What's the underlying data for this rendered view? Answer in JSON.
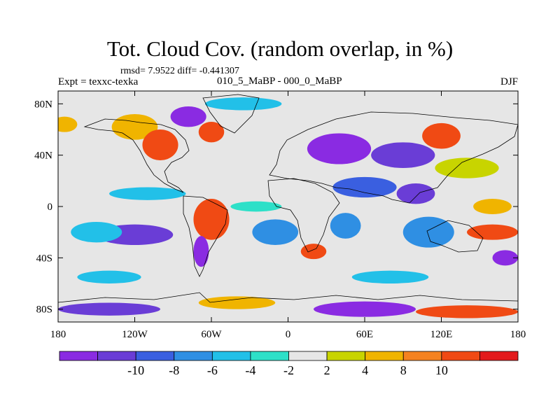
{
  "title": "Tot. Cloud Cov. (random overlap, in %)",
  "stats": "rmsd= 7.9522 diff= -0.441307",
  "experiment": "Expt = texxc-texka",
  "subtitle": "010_5_MaBP - 000_0_MaBP",
  "season": "DJF",
  "map": {
    "lon_range": [
      -180,
      180
    ],
    "lat_range": [
      -90,
      90
    ],
    "x_ticks": [
      {
        "lon": -180,
        "label": "180"
      },
      {
        "lon": -120,
        "label": "120W"
      },
      {
        "lon": -60,
        "label": "60W"
      },
      {
        "lon": 0,
        "label": "0"
      },
      {
        "lon": 60,
        "label": "60E"
      },
      {
        "lon": 120,
        "label": "120E"
      },
      {
        "lon": 180,
        "label": "180"
      }
    ],
    "y_ticks": [
      {
        "lat": 80,
        "label": "80N"
      },
      {
        "lat": 40,
        "label": "40N"
      },
      {
        "lat": 0,
        "label": "0"
      },
      {
        "lat": -40,
        "label": "40S"
      },
      {
        "lat": -80,
        "label": "80S"
      }
    ],
    "anomaly_regions": [
      {
        "lon": -175,
        "lat": 64,
        "rx": 10,
        "ry": 6,
        "bin": 8
      },
      {
        "lon": -120,
        "lat": 62,
        "rx": 18,
        "ry": 10,
        "bin": 8
      },
      {
        "lon": -100,
        "lat": 48,
        "rx": 14,
        "ry": 12,
        "bin": 10
      },
      {
        "lon": -78,
        "lat": 70,
        "rx": 14,
        "ry": 8,
        "bin": 0
      },
      {
        "lon": -60,
        "lat": 58,
        "rx": 10,
        "ry": 8,
        "bin": 10
      },
      {
        "lon": -35,
        "lat": 80,
        "rx": 30,
        "ry": 5,
        "bin": 4
      },
      {
        "lon": -145,
        "lat": 25,
        "rx": 28,
        "ry": 6,
        "bin": 6
      },
      {
        "lon": -110,
        "lat": 10,
        "rx": 30,
        "ry": 5,
        "bin": 4
      },
      {
        "lon": -60,
        "lat": -10,
        "rx": 14,
        "ry": 16,
        "bin": 10
      },
      {
        "lon": -68,
        "lat": -35,
        "rx": 6,
        "ry": 12,
        "bin": 0
      },
      {
        "lon": -120,
        "lat": -22,
        "rx": 30,
        "ry": 8,
        "bin": 1
      },
      {
        "lon": -150,
        "lat": -20,
        "rx": 20,
        "ry": 8,
        "bin": 4
      },
      {
        "lon": -25,
        "lat": 0,
        "rx": 20,
        "ry": 4,
        "bin": 5
      },
      {
        "lon": -10,
        "lat": -20,
        "rx": 18,
        "ry": 10,
        "bin": 3
      },
      {
        "lon": 20,
        "lat": -35,
        "rx": 10,
        "ry": 6,
        "bin": 10
      },
      {
        "lon": 45,
        "lat": -15,
        "rx": 12,
        "ry": 10,
        "bin": 3
      },
      {
        "lon": 40,
        "lat": 45,
        "rx": 25,
        "ry": 12,
        "bin": 0
      },
      {
        "lon": 90,
        "lat": 40,
        "rx": 25,
        "ry": 10,
        "bin": 1
      },
      {
        "lon": 120,
        "lat": 55,
        "rx": 15,
        "ry": 10,
        "bin": 10
      },
      {
        "lon": 60,
        "lat": 15,
        "rx": 25,
        "ry": 8,
        "bin": 2
      },
      {
        "lon": 100,
        "lat": 10,
        "rx": 15,
        "ry": 8,
        "bin": 1
      },
      {
        "lon": 110,
        "lat": -20,
        "rx": 20,
        "ry": 12,
        "bin": 3
      },
      {
        "lon": 160,
        "lat": 0,
        "rx": 15,
        "ry": 6,
        "bin": 8
      },
      {
        "lon": 160,
        "lat": -20,
        "rx": 20,
        "ry": 6,
        "bin": 10
      },
      {
        "lon": 140,
        "lat": 30,
        "rx": 25,
        "ry": 8,
        "bin": 7
      },
      {
        "lon": 170,
        "lat": -40,
        "rx": 10,
        "ry": 6,
        "bin": 0
      },
      {
        "lon": -40,
        "lat": -75,
        "rx": 30,
        "ry": 5,
        "bin": 8
      },
      {
        "lon": 60,
        "lat": -80,
        "rx": 40,
        "ry": 6,
        "bin": 0
      },
      {
        "lon": 140,
        "lat": -82,
        "rx": 40,
        "ry": 5,
        "bin": 10
      },
      {
        "lon": -140,
        "lat": -80,
        "rx": 40,
        "ry": 5,
        "bin": 1
      },
      {
        "lon": -140,
        "lat": -55,
        "rx": 25,
        "ry": 5,
        "bin": 4
      },
      {
        "lon": 80,
        "lat": -55,
        "rx": 30,
        "ry": 5,
        "bin": 4
      }
    ]
  },
  "colorbar": {
    "colors": [
      "#8a2be2",
      "#6a3dd6",
      "#3a5fe0",
      "#2f8fe3",
      "#22c0e8",
      "#2de0c8",
      "#e6e6e6",
      "#c8d400",
      "#f0b400",
      "#f58220",
      "#f04a14",
      "#e31a1c"
    ],
    "labels": [
      "-10",
      "-8",
      "-6",
      "-4",
      "-2",
      "2",
      "4",
      "8",
      "10"
    ]
  }
}
